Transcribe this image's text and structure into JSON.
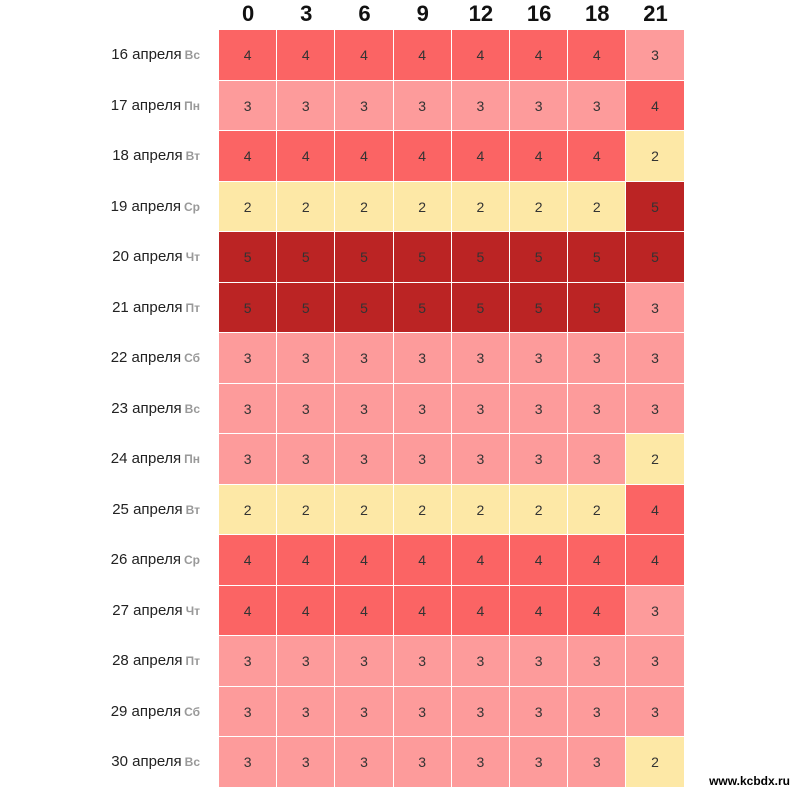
{
  "chart_data": {
    "type": "heatmap",
    "x": [
      "0",
      "3",
      "6",
      "9",
      "12",
      "16",
      "18",
      "21"
    ],
    "rows": [
      {
        "date": "16 апреля",
        "weekday": "Вс",
        "values": [
          4,
          4,
          4,
          4,
          4,
          4,
          4,
          3
        ]
      },
      {
        "date": "17 апреля",
        "weekday": "Пн",
        "values": [
          3,
          3,
          3,
          3,
          3,
          3,
          3,
          4
        ]
      },
      {
        "date": "18 апреля",
        "weekday": "Вт",
        "values": [
          4,
          4,
          4,
          4,
          4,
          4,
          4,
          2
        ]
      },
      {
        "date": "19 апреля",
        "weekday": "Ср",
        "values": [
          2,
          2,
          2,
          2,
          2,
          2,
          2,
          5
        ]
      },
      {
        "date": "20 апреля",
        "weekday": "Чт",
        "values": [
          5,
          5,
          5,
          5,
          5,
          5,
          5,
          5
        ]
      },
      {
        "date": "21 апреля",
        "weekday": "Пт",
        "values": [
          5,
          5,
          5,
          5,
          5,
          5,
          5,
          3
        ]
      },
      {
        "date": "22 апреля",
        "weekday": "Сб",
        "values": [
          3,
          3,
          3,
          3,
          3,
          3,
          3,
          3
        ]
      },
      {
        "date": "23 апреля",
        "weekday": "Вс",
        "values": [
          3,
          3,
          3,
          3,
          3,
          3,
          3,
          3
        ]
      },
      {
        "date": "24 апреля",
        "weekday": "Пн",
        "values": [
          3,
          3,
          3,
          3,
          3,
          3,
          3,
          2
        ]
      },
      {
        "date": "25 апреля",
        "weekday": "Вт",
        "values": [
          2,
          2,
          2,
          2,
          2,
          2,
          2,
          4
        ]
      },
      {
        "date": "26 апреля",
        "weekday": "Ср",
        "values": [
          4,
          4,
          4,
          4,
          4,
          4,
          4,
          4
        ]
      },
      {
        "date": "27 апреля",
        "weekday": "Чт",
        "values": [
          4,
          4,
          4,
          4,
          4,
          4,
          4,
          3
        ]
      },
      {
        "date": "28 апреля",
        "weekday": "Пт",
        "values": [
          3,
          3,
          3,
          3,
          3,
          3,
          3,
          3
        ]
      },
      {
        "date": "29 апреля",
        "weekday": "Сб",
        "values": [
          3,
          3,
          3,
          3,
          3,
          3,
          3,
          3
        ]
      },
      {
        "date": "30 апреля",
        "weekday": "Вс",
        "values": [
          3,
          3,
          3,
          3,
          3,
          3,
          3,
          2
        ]
      }
    ],
    "colors": {
      "2": "#fde8a6",
      "3": "#fd9b9b",
      "4": "#fb6464",
      "5": "#bb2424"
    }
  },
  "watermark": "www.kcbdx.ru"
}
